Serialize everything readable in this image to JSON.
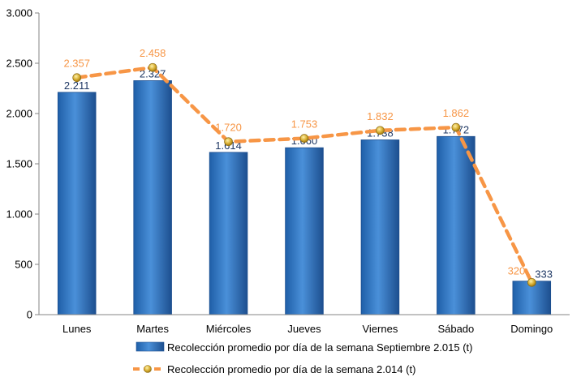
{
  "chart_data": {
    "type": "bar",
    "categories": [
      "Lunes",
      "Martes",
      "Miércoles",
      "Jueves",
      "Viernes",
      "Sábado",
      "Domingo"
    ],
    "series": [
      {
        "name": "Recolección promedio por día de la semana Septiembre 2.015 (t)",
        "kind": "bar",
        "color": "#2e75b6",
        "values": [
          2211,
          2327,
          1614,
          1660,
          1738,
          1772,
          333
        ],
        "value_labels": [
          "2.211",
          "2.327",
          "1.614",
          "1.660",
          "1.738",
          "1.772",
          "333"
        ]
      },
      {
        "name": "Recolección promedio por día de la semana 2.014 (t)",
        "kind": "line",
        "style": "dashed",
        "color": "#f79646",
        "marker_color": "#c9a227",
        "values": [
          2357,
          2458,
          1720,
          1753,
          1832,
          1862,
          320
        ],
        "value_labels": [
          "2.357",
          "2.458",
          "1.720",
          "1.753",
          "1.832",
          "1.862",
          "320"
        ]
      }
    ],
    "ylim": [
      0,
      3000
    ],
    "yticks": [
      0,
      500,
      1000,
      1500,
      2000,
      2500,
      3000
    ],
    "ytick_labels": [
      "0",
      "500",
      "1.000",
      "1.500",
      "2.000",
      "2.500",
      "3.000"
    ],
    "grid": false,
    "legend_position": "bottom"
  }
}
